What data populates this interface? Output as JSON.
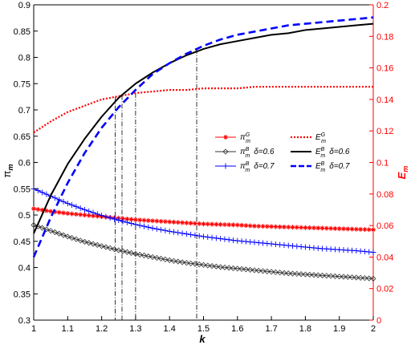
{
  "chart_data": {
    "type": "line",
    "title": "",
    "xlabel": "k",
    "xlim": [
      1,
      2
    ],
    "x_ticks": [
      1,
      1.1,
      1.2,
      1.3,
      1.4,
      1.5,
      1.6,
      1.7,
      1.8,
      1.9,
      2
    ],
    "x_tick_labels": [
      "1",
      "1.1",
      "1.2",
      "1.3",
      "1.4",
      "1.5",
      "1.6",
      "1.7",
      "1.8",
      "1.9",
      "2"
    ],
    "y_left": {
      "label": "π",
      "label_sub": "m",
      "lim": [
        0.3,
        0.9
      ],
      "ticks": [
        0.3,
        0.35,
        0.4,
        0.45,
        0.5,
        0.55,
        0.6,
        0.65,
        0.7,
        0.75,
        0.8,
        0.85,
        0.9
      ],
      "tick_labels": [
        "0.3",
        "0.35",
        "0.4",
        "0.45",
        "0.5",
        "0.55",
        "0.6",
        "0.65",
        "0.7",
        "0.75",
        "0.8",
        "0.85",
        "0.9"
      ],
      "color": "#000000"
    },
    "y_right": {
      "label": "E",
      "label_sub": "m",
      "lim": [
        0,
        0.2
      ],
      "ticks": [
        0,
        0.02,
        0.04,
        0.06,
        0.08,
        0.1,
        0.12,
        0.14,
        0.16,
        0.18,
        0.2
      ],
      "tick_labels": [
        "0",
        "0.02",
        "0.04",
        "0.06",
        "0.08",
        "0.1",
        "0.12",
        "0.14",
        "0.16",
        "0.18",
        "0.2"
      ],
      "color": "#ff0000"
    },
    "grid": false,
    "legend_position": "center-right",
    "x": [
      1,
      1.05,
      1.1,
      1.15,
      1.2,
      1.25,
      1.3,
      1.35,
      1.4,
      1.45,
      1.5,
      1.55,
      1.6,
      1.65,
      1.7,
      1.75,
      1.8,
      1.85,
      1.9,
      1.95,
      2
    ],
    "series": [
      {
        "id": "piG",
        "legend_main": "π",
        "legend_sub": "m",
        "legend_sup": "G",
        "legend_delta": "",
        "axis": "left",
        "color": "#ff0000",
        "style": "solid",
        "marker": "star",
        "values": [
          0.512,
          0.507,
          0.503,
          0.5,
          0.497,
          0.494,
          0.491,
          0.489,
          0.487,
          0.485,
          0.483,
          0.482,
          0.481,
          0.479,
          0.478,
          0.477,
          0.476,
          0.475,
          0.474,
          0.473,
          0.472
        ]
      },
      {
        "id": "piB06",
        "legend_main": "π",
        "legend_sub": "m",
        "legend_sup": "B",
        "legend_delta": "δ=0.6",
        "axis": "left",
        "color": "#333333",
        "style": "solid",
        "marker": "diamond",
        "values": [
          0.481,
          0.47,
          0.459,
          0.449,
          0.441,
          0.433,
          0.426,
          0.42,
          0.414,
          0.409,
          0.405,
          0.401,
          0.398,
          0.395,
          0.392,
          0.389,
          0.387,
          0.385,
          0.383,
          0.381,
          0.379
        ]
      },
      {
        "id": "piB07",
        "legend_main": "π",
        "legend_sub": "m",
        "legend_sup": "B",
        "legend_delta": "δ=0.7",
        "axis": "left",
        "color": "#0000ff",
        "style": "solid",
        "marker": "plus",
        "values": [
          0.55,
          0.536,
          0.522,
          0.51,
          0.499,
          0.49,
          0.482,
          0.475,
          0.469,
          0.464,
          0.459,
          0.455,
          0.451,
          0.448,
          0.445,
          0.442,
          0.439,
          0.436,
          0.434,
          0.432,
          0.429
        ]
      },
      {
        "id": "EG",
        "legend_main": "E",
        "legend_sub": "m",
        "legend_sup": "G",
        "legend_delta": "",
        "axis": "right",
        "color": "#ff0000",
        "style": "dotted",
        "marker": "none",
        "values": [
          0.119,
          0.126,
          0.132,
          0.136,
          0.14,
          0.142,
          0.144,
          0.145,
          0.146,
          0.146,
          0.147,
          0.147,
          0.147,
          0.148,
          0.148,
          0.148,
          0.148,
          0.148,
          0.148,
          0.148,
          0.148
        ]
      },
      {
        "id": "EB06",
        "legend_main": "E",
        "legend_sub": "m",
        "legend_sup": "B",
        "legend_delta": "δ=0.6",
        "axis": "right",
        "color": "#000000",
        "style": "solid",
        "marker": "none",
        "values": [
          0.055,
          0.079,
          0.099,
          0.115,
          0.129,
          0.141,
          0.15,
          0.157,
          0.163,
          0.168,
          0.172,
          0.175,
          0.177,
          0.179,
          0.181,
          0.182,
          0.184,
          0.185,
          0.186,
          0.187,
          0.188
        ]
      },
      {
        "id": "EB07",
        "legend_main": "E",
        "legend_sub": "m",
        "legend_sup": "B",
        "legend_delta": "δ=0.7",
        "axis": "right",
        "color": "#0000ff",
        "style": "dashed",
        "marker": "none",
        "values": [
          0.04,
          0.065,
          0.087,
          0.106,
          0.122,
          0.135,
          0.146,
          0.156,
          0.163,
          0.169,
          0.174,
          0.178,
          0.181,
          0.183,
          0.185,
          0.187,
          0.188,
          0.189,
          0.19,
          0.191,
          0.192
        ]
      }
    ],
    "reference_lines_x": [
      1.24,
      1.26,
      1.3,
      1.48
    ]
  }
}
